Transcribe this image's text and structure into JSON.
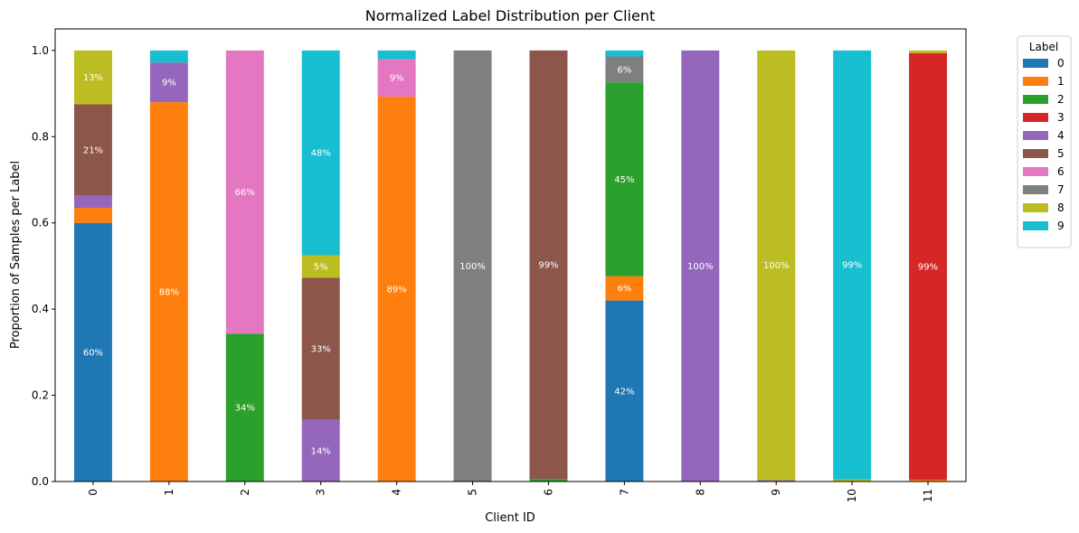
{
  "chart_data": {
    "type": "bar",
    "stacked": true,
    "title": "Normalized Label Distribution per Client",
    "xlabel": "Client ID",
    "ylabel": "Proportion of Samples per Label",
    "ylim": [
      0,
      1.05
    ],
    "yticks": [
      "0.0",
      "0.2",
      "0.4",
      "0.6",
      "0.8",
      "1.0"
    ],
    "categories": [
      "0",
      "1",
      "2",
      "3",
      "4",
      "5",
      "6",
      "7",
      "8",
      "9",
      "10",
      "11"
    ],
    "grid": false,
    "legend": {
      "title": "Label",
      "position": "outside-top-right"
    },
    "series": [
      {
        "name": "0",
        "color": "#1f77b4",
        "values": [
          0.6,
          0,
          0,
          0,
          0,
          0,
          0,
          0.42,
          0,
          0,
          0,
          0
        ]
      },
      {
        "name": "1",
        "color": "#ff7f0e",
        "values": [
          0.035,
          0.88,
          0,
          0,
          0.893,
          0,
          0,
          0.056,
          0,
          0,
          0,
          0.004
        ]
      },
      {
        "name": "2",
        "color": "#2ca02c",
        "values": [
          0,
          0,
          0.343,
          0,
          0,
          0,
          0.006,
          0.45,
          0,
          0,
          0,
          0
        ]
      },
      {
        "name": "3",
        "color": "#d62728",
        "values": [
          0,
          0,
          0,
          0,
          0,
          0,
          0,
          0,
          0,
          0,
          0,
          0.99
        ]
      },
      {
        "name": "4",
        "color": "#9467bd",
        "values": [
          0.028,
          0.092,
          0,
          0.143,
          0,
          0,
          0,
          0,
          1.0,
          0.003,
          0,
          0
        ]
      },
      {
        "name": "5",
        "color": "#8c564b",
        "values": [
          0.212,
          0,
          0,
          0.33,
          0,
          0,
          0.994,
          0,
          0,
          0,
          0,
          0
        ]
      },
      {
        "name": "6",
        "color": "#e377c2",
        "values": [
          0,
          0,
          0.657,
          0,
          0.087,
          0,
          0,
          0,
          0,
          0,
          0,
          0
        ]
      },
      {
        "name": "7",
        "color": "#7f7f7f",
        "values": [
          0,
          0,
          0,
          0,
          0,
          1.0,
          0,
          0.06,
          0,
          0,
          0,
          0
        ]
      },
      {
        "name": "8",
        "color": "#bcbd22",
        "values": [
          0.125,
          0,
          0,
          0.052,
          0,
          0,
          0,
          0,
          0,
          0.997,
          0.005,
          0.006
        ]
      },
      {
        "name": "9",
        "color": "#17becf",
        "values": [
          0,
          0.028,
          0,
          0.475,
          0.02,
          0,
          0,
          0.014,
          0,
          0,
          0.995,
          0
        ]
      }
    ],
    "data_labels": [
      {
        "category": "0",
        "series": "0",
        "text": "60%"
      },
      {
        "category": "0",
        "series": "5",
        "text": "21%"
      },
      {
        "category": "0",
        "series": "8",
        "text": "13%"
      },
      {
        "category": "1",
        "series": "1",
        "text": "88%"
      },
      {
        "category": "1",
        "series": "4",
        "text": "9%"
      },
      {
        "category": "2",
        "series": "2",
        "text": "34%"
      },
      {
        "category": "2",
        "series": "6",
        "text": "66%"
      },
      {
        "category": "3",
        "series": "4",
        "text": "14%"
      },
      {
        "category": "3",
        "series": "5",
        "text": "33%"
      },
      {
        "category": "3",
        "series": "8",
        "text": "5%"
      },
      {
        "category": "3",
        "series": "9",
        "text": "48%"
      },
      {
        "category": "4",
        "series": "1",
        "text": "89%"
      },
      {
        "category": "4",
        "series": "6",
        "text": "9%"
      },
      {
        "category": "5",
        "series": "7",
        "text": "100%"
      },
      {
        "category": "6",
        "series": "5",
        "text": "99%"
      },
      {
        "category": "7",
        "series": "0",
        "text": "42%"
      },
      {
        "category": "7",
        "series": "1",
        "text": "6%"
      },
      {
        "category": "7",
        "series": "2",
        "text": "45%"
      },
      {
        "category": "7",
        "series": "7",
        "text": "6%"
      },
      {
        "category": "8",
        "series": "4",
        "text": "100%"
      },
      {
        "category": "9",
        "series": "8",
        "text": "100%"
      },
      {
        "category": "10",
        "series": "9",
        "text": "99%"
      },
      {
        "category": "11",
        "series": "3",
        "text": "99%"
      }
    ]
  }
}
